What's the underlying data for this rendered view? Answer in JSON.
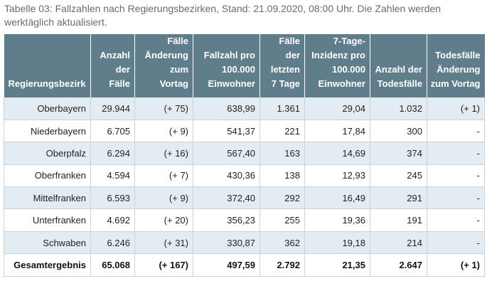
{
  "caption": "Tabelle 03: Fallzahlen nach Regierungsbezirken, Stand: 21.09.2020, 08:00 Uhr. Die Zahlen werden werktäglich aktualisiert.",
  "table": {
    "headers": [
      "Regierungsbezirk",
      "Anzahl\nder\nFälle",
      "Fälle\nÄnderung\nzum\nVortag",
      "Fallzahl pro\n100.000\nEinwohner",
      "Fälle\nder\nletzten\n7 Tage",
      "7-Tage-\nInzidenz pro\n100.000\nEinwohner",
      "Anzahl der\nTodesfälle",
      "Todesfälle\nÄnderung\nzum Vortag"
    ],
    "rows": [
      [
        "Oberbayern",
        "29.944",
        "(+ 75)",
        "638,99",
        "1.361",
        "29,04",
        "1.032",
        "(+ 1)"
      ],
      [
        "Niederbayern",
        "6.705",
        "(+ 9)",
        "541,37",
        "221",
        "17,84",
        "300",
        "-"
      ],
      [
        "Oberpfalz",
        "6.294",
        "(+ 16)",
        "567,40",
        "163",
        "14,69",
        "374",
        "-"
      ],
      [
        "Oberfranken",
        "4.594",
        "(+ 7)",
        "430,36",
        "138",
        "12,93",
        "245",
        "-"
      ],
      [
        "Mittelfranken",
        "6.593",
        "(+ 9)",
        "372,40",
        "292",
        "16,49",
        "291",
        "-"
      ],
      [
        "Unterfranken",
        "4.692",
        "(+ 20)",
        "356,23",
        "255",
        "19,36",
        "191",
        "-"
      ],
      [
        "Schwaben",
        "6.246",
        "(+ 31)",
        "330,87",
        "362",
        "19,18",
        "214",
        "-"
      ]
    ],
    "total": [
      "Gesamtergebnis",
      "65.068",
      "(+ 167)",
      "497,59",
      "2.792",
      "21,35",
      "2.647",
      "(+ 1)"
    ]
  }
}
